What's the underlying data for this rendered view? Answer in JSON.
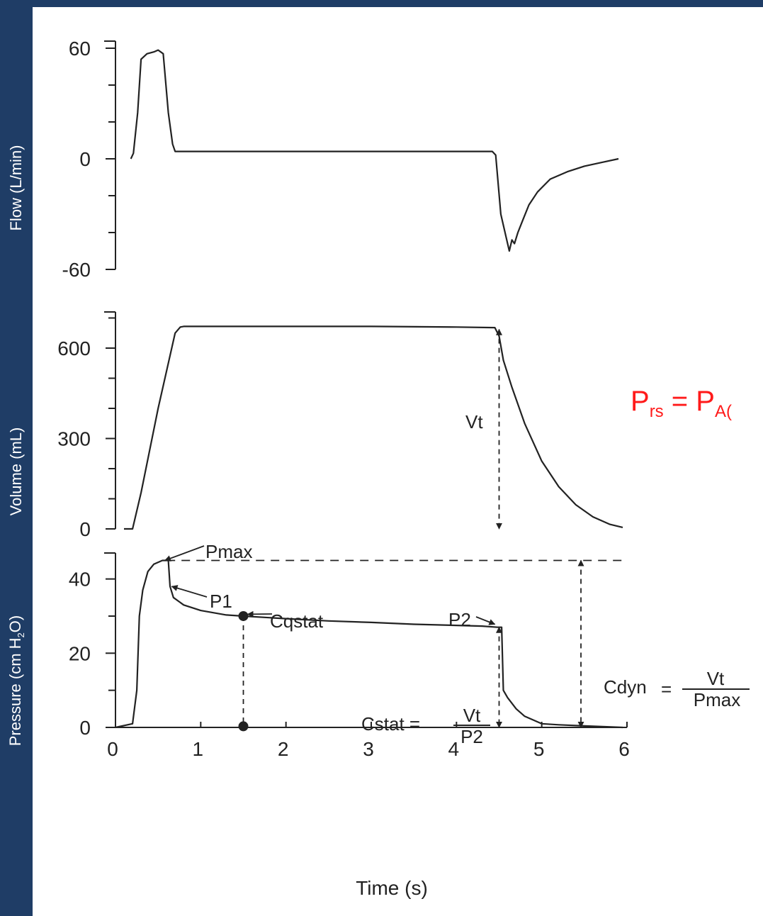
{
  "axis_labels": {
    "flow": "Flow (L/min)",
    "volume": "Volume (mL)",
    "pressure_prefix": "Pressure (cm H",
    "pressure_sub": "2",
    "pressure_suffix": "O)",
    "time": "Time (s)"
  },
  "formula": {
    "p": "P",
    "rs": "rs",
    "eq": " = P",
    "sub_partial": "A("
  },
  "annotations": {
    "vt": "Vt",
    "pmax": "Pmax",
    "p1": "P1",
    "cqstat": "Cqstat",
    "p2": "P2",
    "cstat_lhs": "Cstat =",
    "cstat_num": "Vt",
    "cstat_den": "P2",
    "cdyn_lhs": "Cdyn",
    "cdyn_eq": "=",
    "cdyn_num": "Vt",
    "cdyn_den": "Pmax"
  },
  "colors": {
    "frame": "#1f3d66",
    "formula": "#ff1a1a",
    "trace": "#222222"
  },
  "chart_data": {
    "type": "line",
    "x_label": "Time (s)",
    "x_ticks": [
      "0",
      "1",
      "2",
      "3",
      "4",
      "5",
      "6"
    ],
    "xlim": [
      0,
      6
    ],
    "panels": [
      {
        "name": "flow",
        "ylim": [
          -60,
          60
        ],
        "y_ticks": [
          "60",
          "0",
          "-60"
        ],
        "x": [
          0.18,
          0.21,
          0.26,
          0.3,
          0.37,
          0.45,
          0.5,
          0.56,
          0.62,
          0.67,
          0.7,
          0.75,
          1.0,
          2.0,
          3.0,
          4.0,
          4.42,
          4.46,
          4.52,
          4.58,
          4.62,
          4.65,
          4.68,
          4.72,
          4.78,
          4.85,
          4.95,
          5.1,
          5.3,
          5.5,
          5.7,
          5.9
        ],
        "y": [
          0,
          3,
          25,
          54,
          57,
          58,
          59,
          57,
          25,
          8,
          4,
          4,
          4,
          4,
          4,
          4,
          4,
          2,
          -30,
          -42,
          -50,
          -44,
          -46,
          -40,
          -33,
          -25,
          -18,
          -11,
          -7,
          -4,
          -2,
          0
        ]
      },
      {
        "name": "volume",
        "ylim": [
          0,
          720
        ],
        "y_ticks": [
          "600",
          "300",
          "0"
        ],
        "x": [
          0.1,
          0.2,
          0.3,
          0.5,
          0.7,
          0.76,
          0.8,
          1.0,
          2.0,
          3.0,
          4.0,
          4.45,
          4.5,
          4.55,
          4.65,
          4.8,
          5.0,
          5.2,
          5.4,
          5.6,
          5.8,
          5.95
        ],
        "y": [
          0,
          0,
          120,
          400,
          650,
          670,
          672,
          672,
          672,
          672,
          670,
          668,
          640,
          560,
          470,
          350,
          225,
          140,
          80,
          40,
          15,
          5
        ]
      },
      {
        "name": "pressure",
        "ylim": [
          0,
          47
        ],
        "y_ticks": [
          "40",
          "20",
          "0"
        ],
        "x": [
          0.0,
          0.2,
          0.25,
          0.28,
          0.32,
          0.38,
          0.45,
          0.55,
          0.62,
          0.64,
          0.68,
          0.8,
          1.0,
          1.3,
          1.5,
          2.0,
          2.5,
          3.0,
          3.5,
          4.0,
          4.3,
          4.48,
          4.53,
          4.55,
          4.6,
          4.7,
          4.8,
          4.9,
          5.0,
          5.2,
          5.5,
          5.95
        ],
        "y": [
          0,
          1,
          10,
          30,
          37,
          42,
          44,
          45,
          45,
          38,
          35,
          33,
          31.5,
          30.3,
          30,
          29.3,
          28.7,
          28.3,
          27.8,
          27.5,
          27.3,
          27,
          27,
          10,
          8,
          5,
          3,
          2,
          1,
          0.7,
          0.4,
          0
        ]
      }
    ]
  }
}
